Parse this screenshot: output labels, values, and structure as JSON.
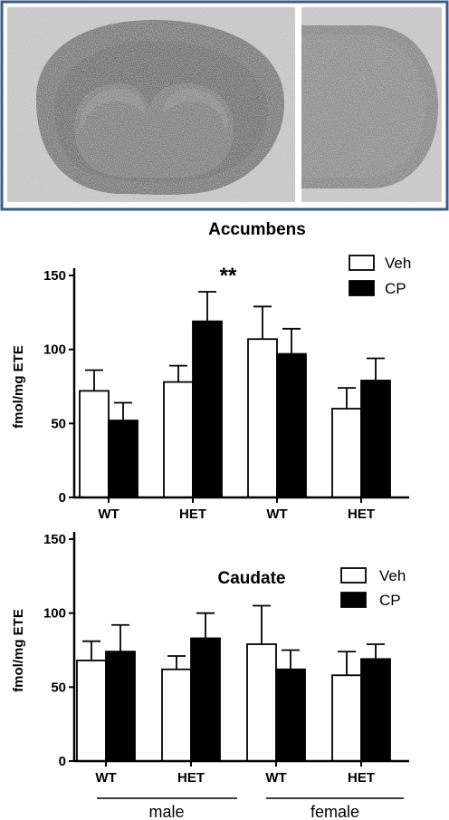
{
  "colors": {
    "frame": "#3a5a8a",
    "tissue": "#6f6f6f",
    "background_noise": "#b8b8b8",
    "veh_fill": "#ffffff",
    "cp_fill": "#000000"
  },
  "panel_top": {
    "type": "image",
    "description_icons": [
      "brain-section-coronal",
      "brain-section-caudal"
    ]
  },
  "groups": [
    "male",
    "female"
  ],
  "chart_data": [
    {
      "type": "bar",
      "title": "Accumbens",
      "ylabel": "fmol/mg ETE",
      "categories": [
        "WT",
        "HET",
        "WT",
        "HET"
      ],
      "ylim": [
        0,
        150
      ],
      "yticks": [
        0,
        50,
        100,
        150
      ],
      "grid": false,
      "legend_position": "top-right",
      "series": [
        {
          "name": "Veh",
          "values": [
            72,
            78,
            107,
            60
          ],
          "errors": [
            14,
            11,
            22,
            14
          ]
        },
        {
          "name": "CP",
          "values": [
            52,
            119,
            97,
            79
          ],
          "errors": [
            12,
            20,
            17,
            15
          ]
        }
      ],
      "annotations": [
        {
          "text": "**",
          "category_index": 1
        }
      ]
    },
    {
      "type": "bar",
      "title": "Caudate",
      "ylabel": "fmol/mg ETE",
      "categories": [
        "WT",
        "HET",
        "WT",
        "HET"
      ],
      "ylim": [
        0,
        150
      ],
      "yticks": [
        0,
        50,
        100,
        150
      ],
      "grid": false,
      "legend_position": "top-right",
      "series": [
        {
          "name": "Veh",
          "values": [
            68,
            62,
            79,
            58
          ],
          "errors": [
            13,
            9,
            26,
            16
          ]
        },
        {
          "name": "CP",
          "values": [
            74,
            83,
            62,
            69
          ],
          "errors": [
            18,
            17,
            13,
            10
          ]
        }
      ],
      "annotations": []
    }
  ]
}
